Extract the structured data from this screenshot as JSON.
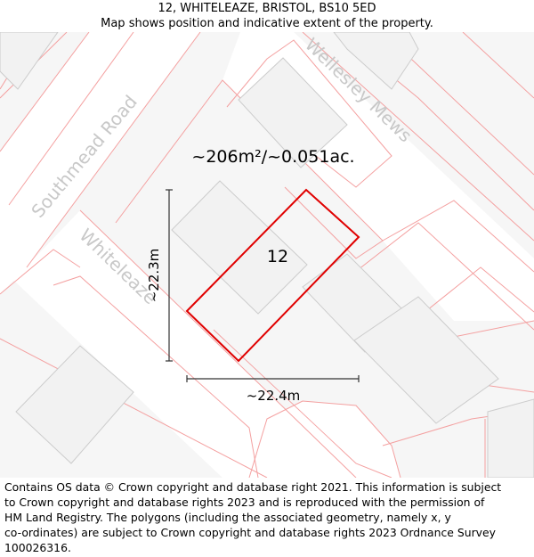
{
  "header": {
    "title": "12, WHITELEAZE, BRISTOL, BS10 5ED",
    "subtitle": "Map shows position and indicative extent of the property."
  },
  "map": {
    "area_label": "~206m²/~0.051ac.",
    "plot_number": "12",
    "dimension_vertical": "~22.3m",
    "dimension_horizontal": "~22.4m",
    "roads": [
      {
        "name": "Southmead Road"
      },
      {
        "name": "Whiteleaze"
      },
      {
        "name": "Wellesley Mews"
      }
    ],
    "colors": {
      "plot_outline": "#e00000",
      "boundary_lines": "#f4a0a0",
      "road_fill": "#ffffff",
      "building_fill": "#f2f2f2",
      "building_stroke": "#cccccc",
      "parcel_fill": "#f6f6f6",
      "road_label": "#c8c8c8",
      "dimension": "#333333"
    }
  },
  "footer": {
    "lines": [
      "Contains OS data © Crown copyright and database right 2021. This information is subject",
      "to Crown copyright and database rights 2023 and is reproduced with the permission of",
      "HM Land Registry. The polygons (including the associated geometry, namely x, y",
      "co-ordinates) are subject to Crown copyright and database rights 2023 Ordnance Survey",
      "100026316."
    ]
  }
}
